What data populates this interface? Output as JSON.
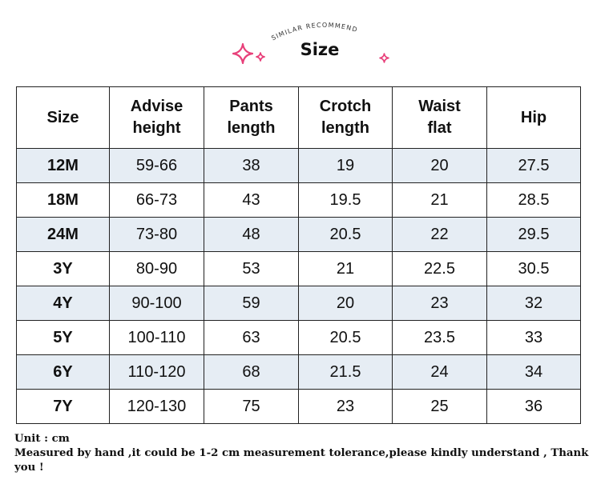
{
  "header": {
    "arc_text": "SIMILAR RECOMMEND",
    "title": "Size",
    "accent_color": "#e8407a"
  },
  "table": {
    "columns": [
      {
        "line1": "Size",
        "line2": ""
      },
      {
        "line1": "Advise",
        "line2": "height"
      },
      {
        "line1": "Pants",
        "line2": "length"
      },
      {
        "line1": "Crotch",
        "line2": "length"
      },
      {
        "line1": "Waist",
        "line2": "flat"
      },
      {
        "line1": "Hip",
        "line2": ""
      }
    ],
    "rows": [
      [
        "12M",
        "59-66",
        "38",
        "19",
        "20",
        "27.5"
      ],
      [
        "18M",
        "66-73",
        "43",
        "19.5",
        "21",
        "28.5"
      ],
      [
        "24M",
        "73-80",
        "48",
        "20.5",
        "22",
        "29.5"
      ],
      [
        "3Y",
        "80-90",
        "53",
        "21",
        "22.5",
        "30.5"
      ],
      [
        "4Y",
        "90-100",
        "59",
        "20",
        "23",
        "32"
      ],
      [
        "5Y",
        "100-110",
        "63",
        "20.5",
        "23.5",
        "33"
      ],
      [
        "6Y",
        "110-120",
        "68",
        "21.5",
        "24",
        "34"
      ],
      [
        "7Y",
        "120-130",
        "75",
        "23",
        "25",
        "36"
      ]
    ],
    "shaded_row_color": "#e6edf4"
  },
  "notes": {
    "unit": "Unit : cm",
    "measure": "Measured by hand ,it could be 1-2 cm measurement tolerance,please kindly understand , Thank you !"
  }
}
